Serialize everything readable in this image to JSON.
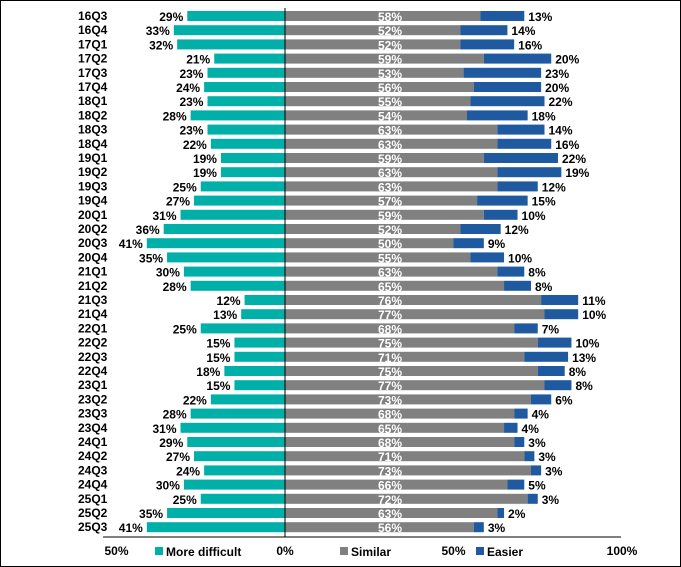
{
  "chart_data": {
    "type": "bar",
    "subtype": "diverging-stacked-horizontal",
    "categories": [
      "16Q3",
      "16Q4",
      "17Q1",
      "17Q2",
      "17Q3",
      "17Q4",
      "18Q1",
      "18Q2",
      "18Q3",
      "18Q4",
      "19Q1",
      "19Q2",
      "19Q3",
      "19Q4",
      "20Q1",
      "20Q2",
      "20Q3",
      "20Q4",
      "21Q1",
      "21Q2",
      "21Q3",
      "21Q4",
      "22Q1",
      "22Q2",
      "22Q3",
      "22Q4",
      "23Q1",
      "23Q2",
      "23Q3",
      "23Q4",
      "24Q1",
      "24Q2",
      "24Q3",
      "24Q4",
      "25Q1",
      "25Q2",
      "25Q3"
    ],
    "series": [
      {
        "name": "More difficult",
        "color": "#00b0a8",
        "direction": "left",
        "values": [
          29,
          33,
          32,
          21,
          23,
          24,
          23,
          28,
          23,
          22,
          19,
          19,
          25,
          27,
          31,
          36,
          41,
          35,
          30,
          28,
          12,
          13,
          25,
          15,
          15,
          18,
          15,
          22,
          28,
          31,
          29,
          27,
          24,
          30,
          25,
          35,
          41
        ]
      },
      {
        "name": "Similar",
        "color": "#808080",
        "direction": "right",
        "values": [
          58,
          52,
          52,
          59,
          53,
          56,
          55,
          54,
          63,
          63,
          59,
          63,
          63,
          57,
          59,
          52,
          50,
          55,
          63,
          65,
          76,
          77,
          68,
          75,
          71,
          75,
          77,
          73,
          68,
          65,
          68,
          71,
          73,
          66,
          72,
          63,
          56
        ]
      },
      {
        "name": "Easier",
        "color": "#1f5aa0",
        "direction": "right",
        "values": [
          13,
          14,
          16,
          20,
          23,
          20,
          22,
          18,
          14,
          16,
          22,
          19,
          12,
          15,
          10,
          12,
          9,
          10,
          8,
          8,
          11,
          10,
          7,
          10,
          13,
          8,
          8,
          6,
          4,
          4,
          3,
          3,
          3,
          5,
          3,
          2,
          3
        ]
      }
    ],
    "xaxis": {
      "ticks": [
        "50%",
        "0%",
        "50%",
        "100%"
      ],
      "range": [
        -50,
        100
      ]
    },
    "legend_placement": "bottom",
    "grid": false
  }
}
